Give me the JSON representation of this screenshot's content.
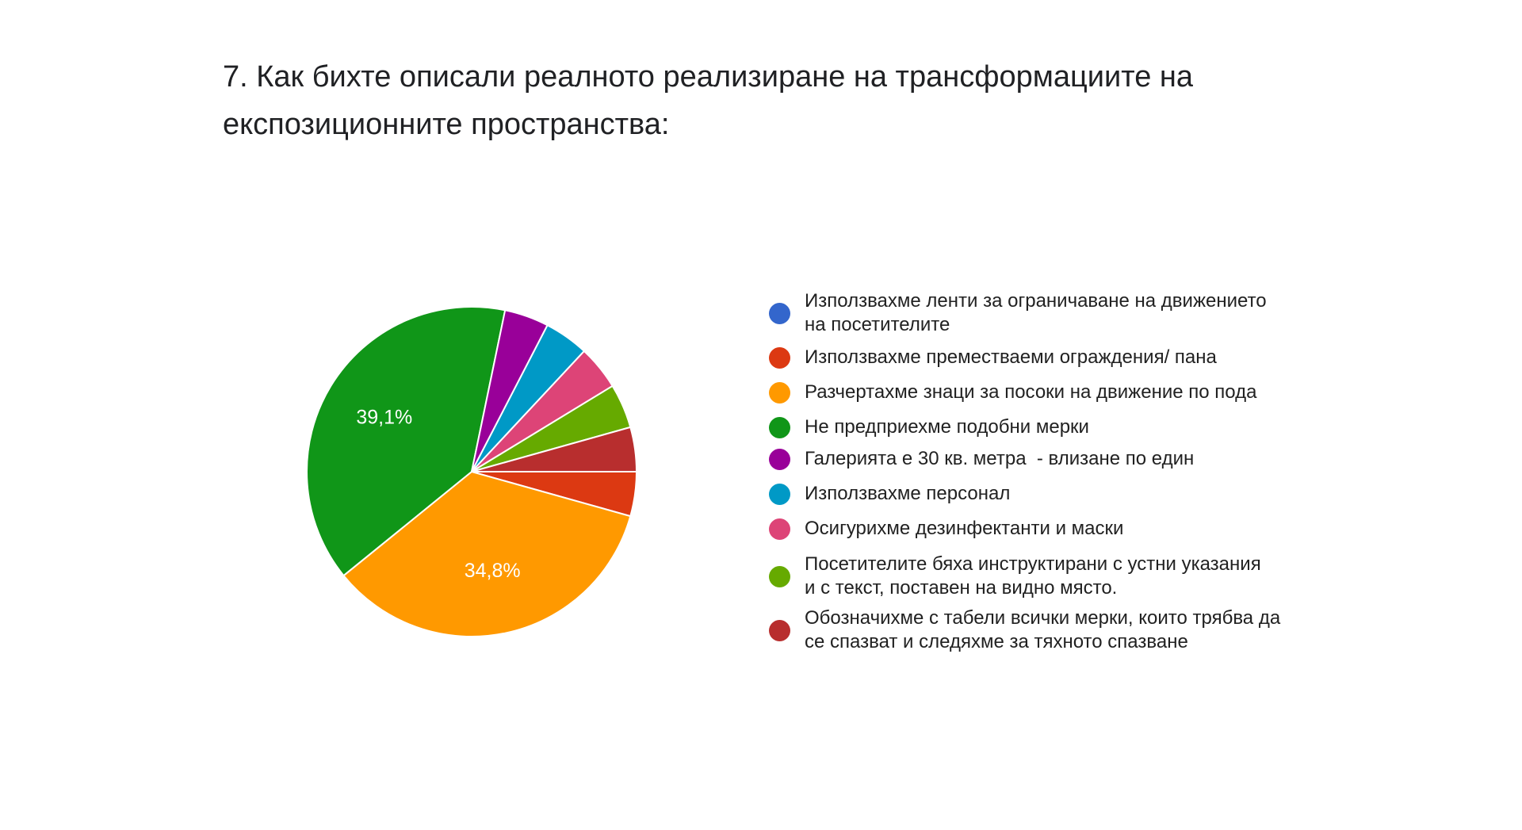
{
  "title": {
    "line1": "7. Как бихте описали реалното реализиране на трансформациите на",
    "line2": "експозиционните пространства:"
  },
  "chart_data": {
    "type": "pie",
    "title": "7. Как бихте описали реалното реализиране на трансформациите на експозиционните пространства:",
    "legend_position": "right",
    "slices": [
      {
        "label": "Използвахме ленти за ограничаване на движението на посетителите",
        "value": 0,
        "color": "#3366cc",
        "data_label": ""
      },
      {
        "label": "Използвахме преместваеми ограждения/ пана",
        "value": 4.35,
        "color": "#dc3912",
        "data_label": ""
      },
      {
        "label": "Разчертахме знаци за посоки на движение по пода",
        "value": 34.8,
        "color": "#ff9900",
        "data_label": "34,8%"
      },
      {
        "label": "Не предприехме подобни мерки",
        "value": 39.1,
        "color": "#109618",
        "data_label": "39,1%"
      },
      {
        "label": "Галерията е 30 кв. метра  - влизане по един",
        "value": 4.35,
        "color": "#990099",
        "data_label": ""
      },
      {
        "label": "Използвахме персонал",
        "value": 4.35,
        "color": "#0099c6",
        "data_label": ""
      },
      {
        "label": "Осигурихме дезинфектанти и маски",
        "value": 4.35,
        "color": "#dd4477",
        "data_label": ""
      },
      {
        "label": "Посетителите бяха инструктирани с устни указания и с текст, поставен на видно място.",
        "value": 4.35,
        "color": "#66aa00",
        "data_label": ""
      },
      {
        "label": "Обозначихме с табели всички мерки, които трябва да се спазват и следяхме за тяхното спазване",
        "value": 4.35,
        "color": "#b82e2e",
        "data_label": ""
      }
    ]
  },
  "legend": {
    "items": [
      {
        "line1": "Използвахме ленти за ограничаване на движението",
        "line2": "на посетителите",
        "color": "#3366cc"
      },
      {
        "line1": "Използвахме преместваеми ограждения/ пана",
        "line2": "",
        "color": "#dc3912"
      },
      {
        "line1": "Разчертахме знаци за посоки на движение по пода",
        "line2": "",
        "color": "#ff9900"
      },
      {
        "line1": "Не предприехме подобни мерки",
        "line2": "",
        "color": "#109618"
      },
      {
        "line1": "Галерията е 30 кв. метра  - влизане по един",
        "line2": "",
        "color": "#990099"
      },
      {
        "line1": "Използвахме персонал",
        "line2": "",
        "color": "#0099c6"
      },
      {
        "line1": "Осигурихме дезинфектанти и маски",
        "line2": "",
        "color": "#dd4477"
      },
      {
        "line1": "Посетителите бяха инструктирани с устни указания",
        "line2": "и с текст, поставен на видно място.",
        "color": "#66aa00"
      },
      {
        "line1": "Обозначихме с табели всички мерки, които трябва да",
        "line2": "се спазват и следяхме за тяхното спазване",
        "color": "#b82e2e"
      }
    ]
  }
}
